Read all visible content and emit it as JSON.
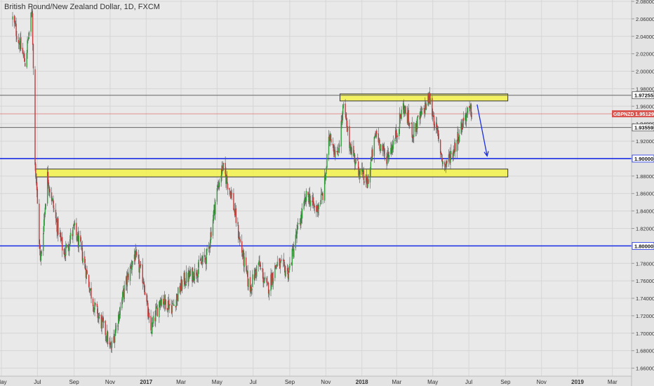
{
  "chart_data": {
    "type": "candlestick",
    "title": "British Pound/New Zealand Dollar, 1D, FXCM",
    "symbol": "GBPNZD",
    "colors": {
      "background": "#e9e9e9",
      "grid": "#d6d6d6",
      "up": "#2f9e3a",
      "down": "#c43a3a",
      "wick": "#555555",
      "axis_text": "#333333",
      "support_line": "#1a2ee6",
      "zone_fill": "#f2f24a",
      "zone_stroke": "#333333",
      "last_price": "#d9544f",
      "level_line": "#666666",
      "arrow": "#1a2ee6"
    },
    "y_axis": {
      "min": 1.65,
      "max": 2.08,
      "tick_labels": [
        "2.08000",
        "2.06000",
        "2.04000",
        "2.02000",
        "2.00000",
        "1.98000",
        "1.96000",
        "1.94000",
        "1.92000",
        "1.90000",
        "1.88000",
        "1.86000",
        "1.84000",
        "1.82000",
        "1.80000",
        "1.78000",
        "1.76000",
        "1.74000",
        "1.72000",
        "1.70000",
        "1.68000",
        "1.66000"
      ]
    },
    "x_axis": {
      "start": "2016-05-01",
      "end": "2019-03-31",
      "labels": [
        {
          "label": "May",
          "date": "2016-05-01"
        },
        {
          "label": "Jul",
          "date": "2016-07-01"
        },
        {
          "label": "Sep",
          "date": "2016-09-01"
        },
        {
          "label": "Nov",
          "date": "2016-11-01"
        },
        {
          "label": "2017",
          "date": "2017-01-01"
        },
        {
          "label": "Mar",
          "date": "2017-03-01"
        },
        {
          "label": "May",
          "date": "2017-05-01"
        },
        {
          "label": "Jul",
          "date": "2017-07-01"
        },
        {
          "label": "Sep",
          "date": "2017-09-01"
        },
        {
          "label": "Nov",
          "date": "2017-11-01"
        },
        {
          "label": "2018",
          "date": "2018-01-01"
        },
        {
          "label": "Mar",
          "date": "2018-03-01"
        },
        {
          "label": "May",
          "date": "2018-05-01"
        },
        {
          "label": "Jul",
          "date": "2018-07-01"
        },
        {
          "label": "Sep",
          "date": "2018-09-01"
        },
        {
          "label": "Nov",
          "date": "2018-11-01"
        },
        {
          "label": "2019",
          "date": "2019-01-01"
        },
        {
          "label": "Mar",
          "date": "2019-03-01"
        }
      ]
    },
    "price_path": [
      {
        "date": "2016-05-20",
        "close": 2.06
      },
      {
        "date": "2016-06-10",
        "close": 2.01
      },
      {
        "date": "2016-06-22",
        "close": 2.07
      },
      {
        "date": "2016-06-27",
        "close": 1.9
      },
      {
        "date": "2016-07-06",
        "close": 1.78
      },
      {
        "date": "2016-07-18",
        "close": 1.88
      },
      {
        "date": "2016-08-01",
        "close": 1.83
      },
      {
        "date": "2016-08-15",
        "close": 1.79
      },
      {
        "date": "2016-09-01",
        "close": 1.82
      },
      {
        "date": "2016-09-15",
        "close": 1.79
      },
      {
        "date": "2016-10-05",
        "close": 1.73
      },
      {
        "date": "2016-10-25",
        "close": 1.7
      },
      {
        "date": "2016-11-02",
        "close": 1.68
      },
      {
        "date": "2016-11-25",
        "close": 1.75
      },
      {
        "date": "2016-12-12",
        "close": 1.79
      },
      {
        "date": "2016-12-28",
        "close": 1.76
      },
      {
        "date": "2017-01-08",
        "close": 1.7
      },
      {
        "date": "2017-01-25",
        "close": 1.74
      },
      {
        "date": "2017-02-15",
        "close": 1.73
      },
      {
        "date": "2017-03-05",
        "close": 1.76
      },
      {
        "date": "2017-03-25",
        "close": 1.77
      },
      {
        "date": "2017-04-15",
        "close": 1.79
      },
      {
        "date": "2017-04-30",
        "close": 1.86
      },
      {
        "date": "2017-05-10",
        "close": 1.89
      },
      {
        "date": "2017-05-25",
        "close": 1.86
      },
      {
        "date": "2017-06-10",
        "close": 1.8
      },
      {
        "date": "2017-06-25",
        "close": 1.75
      },
      {
        "date": "2017-07-10",
        "close": 1.78
      },
      {
        "date": "2017-07-25",
        "close": 1.75
      },
      {
        "date": "2017-08-10",
        "close": 1.78
      },
      {
        "date": "2017-08-30",
        "close": 1.77
      },
      {
        "date": "2017-09-15",
        "close": 1.82
      },
      {
        "date": "2017-10-01",
        "close": 1.86
      },
      {
        "date": "2017-10-15",
        "close": 1.84
      },
      {
        "date": "2017-10-28",
        "close": 1.86
      },
      {
        "date": "2017-11-08",
        "close": 1.93
      },
      {
        "date": "2017-11-20",
        "close": 1.9
      },
      {
        "date": "2017-12-01",
        "close": 1.96
      },
      {
        "date": "2017-12-10",
        "close": 1.92
      },
      {
        "date": "2017-12-25",
        "close": 1.89
      },
      {
        "date": "2018-01-10",
        "close": 1.87
      },
      {
        "date": "2018-01-25",
        "close": 1.93
      },
      {
        "date": "2018-02-10",
        "close": 1.9
      },
      {
        "date": "2018-02-25",
        "close": 1.92
      },
      {
        "date": "2018-03-12",
        "close": 1.96
      },
      {
        "date": "2018-03-28",
        "close": 1.93
      },
      {
        "date": "2018-04-12",
        "close": 1.95
      },
      {
        "date": "2018-04-25",
        "close": 1.97
      },
      {
        "date": "2018-05-08",
        "close": 1.93
      },
      {
        "date": "2018-05-20",
        "close": 1.89
      },
      {
        "date": "2018-06-05",
        "close": 1.91
      },
      {
        "date": "2018-06-25",
        "close": 1.95
      },
      {
        "date": "2018-07-08",
        "close": 1.955
      }
    ],
    "annotations": {
      "resistance_zone": {
        "y_top": 1.974,
        "y_bottom": 1.966,
        "x_start": "2017-11-25",
        "x_end": "2018-09-05"
      },
      "support_zone": {
        "y_top": 1.888,
        "y_bottom": 1.879,
        "x_start": "2016-06-28",
        "x_end": "2018-09-05"
      },
      "hlines": [
        {
          "y": 1.97255,
          "label": "1.97255",
          "style": "level"
        },
        {
          "y": 1.93559,
          "label": "1.93559",
          "style": "level"
        },
        {
          "y": 1.9,
          "label": "1.90000",
          "style": "support"
        },
        {
          "y": 1.8,
          "label": "1.80000",
          "style": "support"
        }
      ],
      "last_price": {
        "y": 1.95129,
        "symbol_label": "GBPNZD",
        "label": "1.95129"
      },
      "arrow": {
        "x1": "2018-07-15",
        "y1": 1.962,
        "x2": "2018-08-01",
        "y2": 1.903
      }
    },
    "grid": true
  }
}
